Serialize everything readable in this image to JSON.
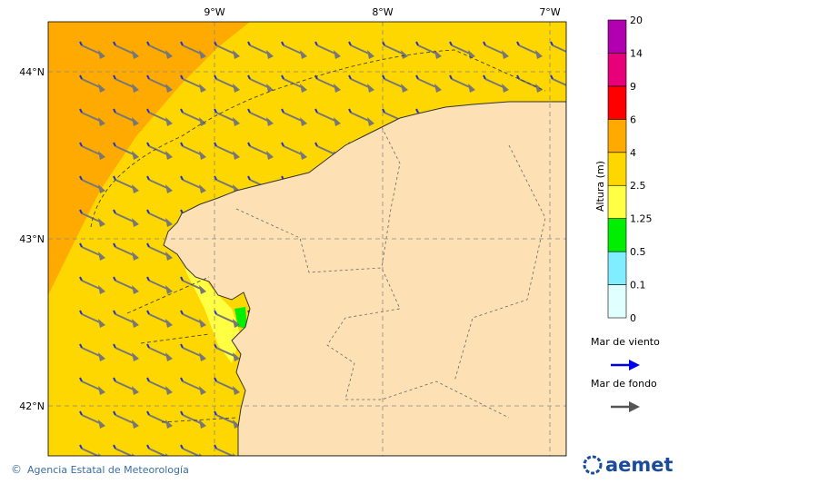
{
  "map": {
    "lon_ticks": [
      "9°W",
      "8°W",
      "7°W"
    ],
    "lat_ticks": [
      "44°N",
      "43°N",
      "42°N"
    ],
    "colorbar": {
      "label": "Altura (m)",
      "ticks": [
        "0",
        "0.1",
        "0.5",
        "1.25",
        "2.5",
        "4",
        "6",
        "9",
        "14",
        "20"
      ],
      "colors": [
        "#e0ffff",
        "#80eeff",
        "#00ee00",
        "#ffff44",
        "#ffd700",
        "#ffaa00",
        "#ff0000",
        "#e8007a",
        "#b000b0"
      ]
    },
    "legend": [
      {
        "label": "Mar de viento",
        "color": "#0000ee"
      },
      {
        "label": "Mar de fondo",
        "color": "#555555"
      }
    ],
    "credit": "Agencia Estatal de Meteorología",
    "logo": "aemet"
  }
}
